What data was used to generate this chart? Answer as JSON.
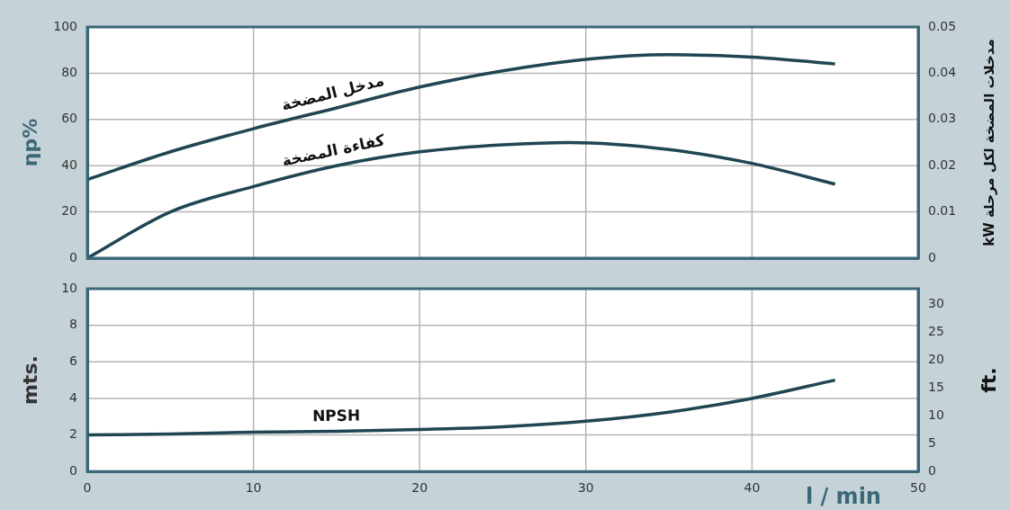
{
  "chart_data": [
    {
      "type": "line",
      "ylabel": "ηp%",
      "y2label": "مدخلات المضخة لكل مرحلة kW",
      "x": [
        0,
        5,
        10,
        15,
        20,
        25,
        30,
        35,
        40,
        45
      ],
      "series": [
        {
          "name": "مدخل المضخة",
          "color": "#1f4652",
          "axis": "y2",
          "values": [
            0.017,
            0.023,
            0.028,
            0.0325,
            0.037,
            0.0405,
            0.043,
            0.044,
            0.0435,
            0.042
          ]
        },
        {
          "name": "كفاءة المضخة",
          "color": "#1f4652",
          "x": [
            0,
            5,
            10,
            15,
            20,
            25,
            29,
            35,
            40,
            45
          ],
          "values": [
            0,
            20,
            31,
            40,
            46,
            49,
            50,
            47,
            41,
            32
          ]
        }
      ],
      "xlim": [
        0,
        50
      ],
      "xticks": [
        0,
        10,
        20,
        30,
        40,
        50
      ],
      "ylim": [
        0,
        100
      ],
      "yticks": [
        0,
        20,
        40,
        60,
        80,
        100
      ],
      "y2lim": [
        0,
        0.05
      ],
      "y2ticks": [
        0,
        0.01,
        0.02,
        0.03,
        0.04,
        0.05
      ],
      "tick_labels": "y",
      "grid": true,
      "legend": false,
      "marker": "none",
      "line_style": "solid"
    },
    {
      "type": "line",
      "xlabel": "l / min",
      "ylabel": "mts.",
      "y2label": "ft.",
      "x": [
        0,
        5,
        10,
        15,
        20,
        25,
        30,
        35,
        40,
        45
      ],
      "series": [
        {
          "name": "NPSH",
          "color": "#1f4652",
          "values": [
            2,
            2.05,
            2.15,
            2.2,
            2.3,
            2.45,
            2.75,
            3.25,
            4.0,
            5.0
          ]
        }
      ],
      "xlim": [
        0,
        50
      ],
      "xticks": [
        0,
        10,
        20,
        30,
        40,
        50
      ],
      "ylim": [
        0,
        10
      ],
      "yticks": [
        0,
        2,
        4,
        6,
        8,
        10
      ],
      "y2lim": [
        0,
        32.81
      ],
      "y2ticks": [
        0,
        5,
        10,
        15,
        20,
        25,
        30
      ],
      "grid": true,
      "legend": false,
      "marker": "none",
      "line_style": "solid"
    }
  ]
}
